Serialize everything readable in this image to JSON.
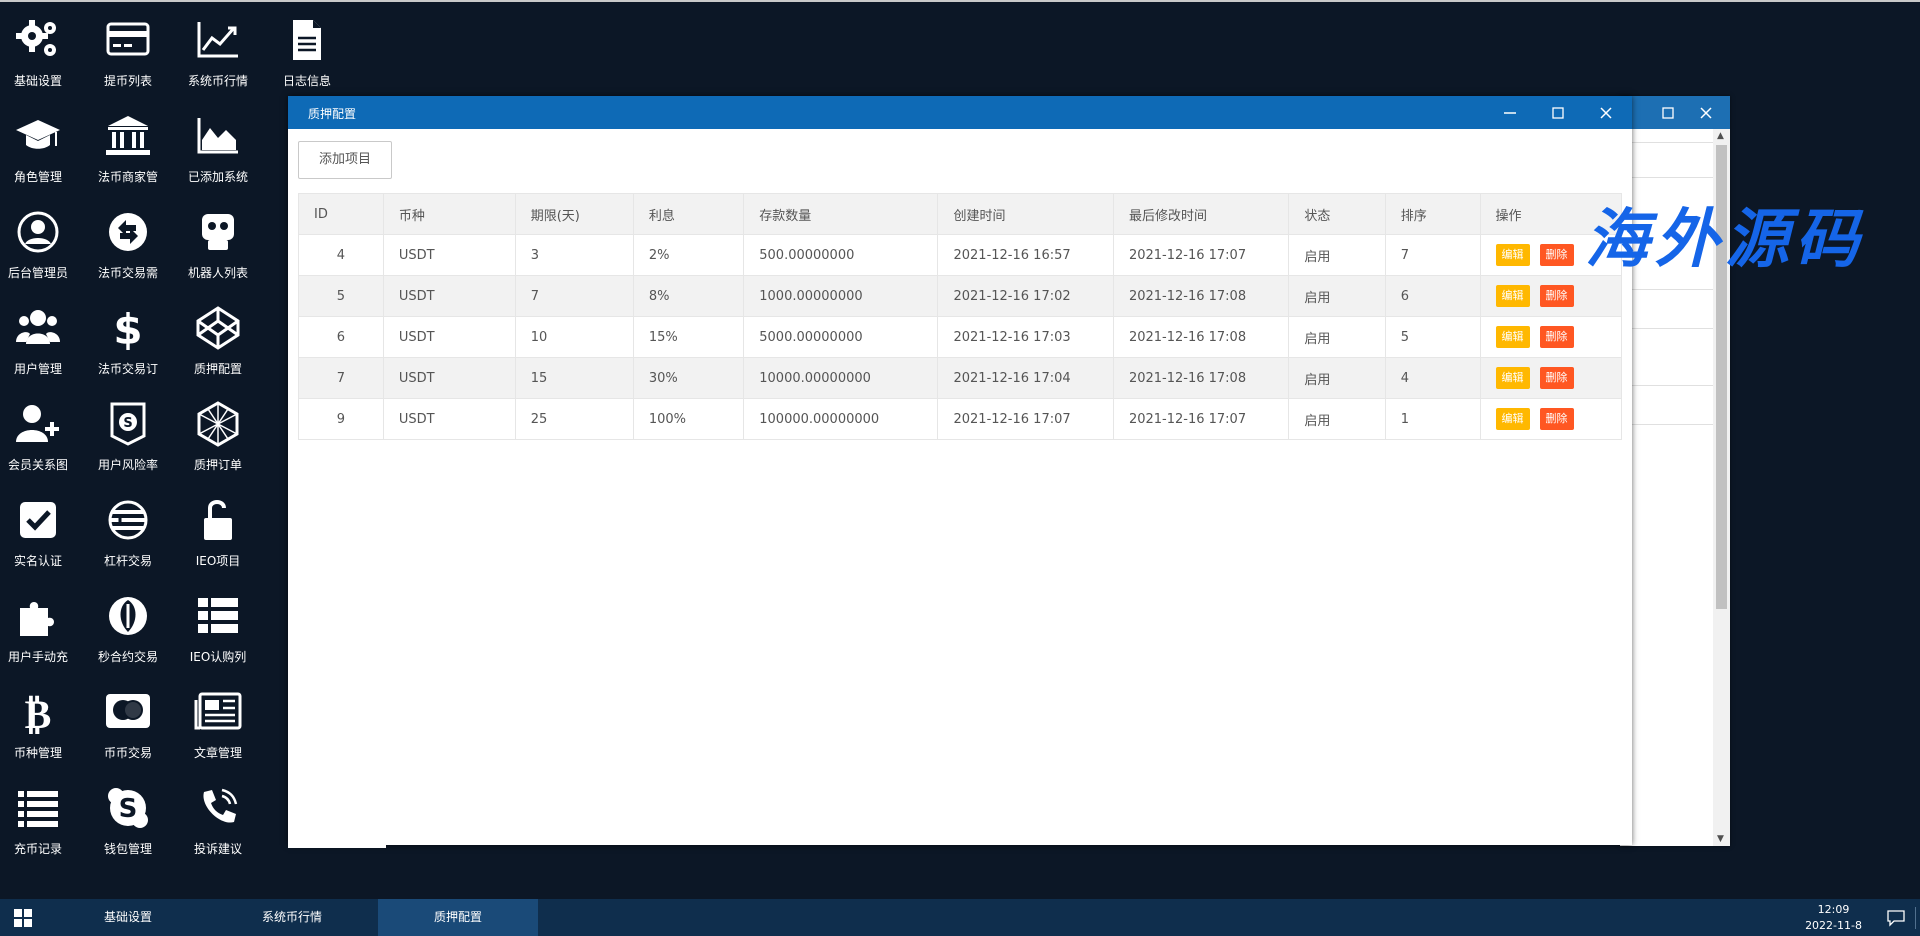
{
  "desktop": {
    "icons": [
      {
        "label": "基础设置",
        "icon": "gears-icon"
      },
      {
        "label": "提币列表",
        "icon": "credit-card-icon"
      },
      {
        "label": "系统币行情",
        "icon": "line-chart-icon"
      },
      {
        "label": "日志信息",
        "icon": "document-icon"
      },
      {
        "label": "角色管理",
        "icon": "graduation-cap-icon"
      },
      {
        "label": "法币商家管",
        "icon": "bank-icon"
      },
      {
        "label": "已添加系统",
        "icon": "area-chart-icon"
      },
      {
        "label": "后台管理员",
        "icon": "user-circle-icon"
      },
      {
        "label": "法币交易需",
        "icon": "exchange-icon"
      },
      {
        "label": "机器人列表",
        "icon": "robot-icon"
      },
      {
        "label": "用户管理",
        "icon": "users-icon"
      },
      {
        "label": "法币交易订",
        "icon": "dollar-icon"
      },
      {
        "label": "质押配置",
        "icon": "codepen-icon"
      },
      {
        "label": "会员关系图",
        "icon": "user-plus-icon"
      },
      {
        "label": "用户风险率",
        "icon": "shield-icon"
      },
      {
        "label": "质押订单",
        "icon": "hexagon-icon"
      },
      {
        "label": "实名认证",
        "icon": "check-square-icon"
      },
      {
        "label": "杠杆交易",
        "icon": "lever-icon"
      },
      {
        "label": "IEO项目",
        "icon": "unlock-icon"
      },
      {
        "label": "用户手动充",
        "icon": "puzzle-icon"
      },
      {
        "label": "秒合约交易",
        "icon": "rebel-icon"
      },
      {
        "label": "IEO认购列",
        "icon": "list-icon"
      },
      {
        "label": "币种管理",
        "icon": "bitcoin-icon"
      },
      {
        "label": "币币交易",
        "icon": "mastercard-icon"
      },
      {
        "label": "文章管理",
        "icon": "newspaper-icon"
      },
      {
        "label": "充币记录",
        "icon": "list-lines-icon"
      },
      {
        "label": "钱包管理",
        "icon": "skype-icon"
      },
      {
        "label": "投诉建议",
        "icon": "phone-icon"
      }
    ]
  },
  "window": {
    "title": "质押配置",
    "add_button": "添加项目",
    "columns": [
      "ID",
      "币种",
      "期限(天)",
      "利息",
      "存款数量",
      "创建时间",
      "最后修改时间",
      "状态",
      "排序",
      "操作"
    ],
    "rows": [
      {
        "id": "4",
        "coin": "USDT",
        "term": "3",
        "interest": "2%",
        "amount": "500.00000000",
        "created": "2021-12-16 16:57",
        "modified": "2021-12-16 17:07",
        "status": "启用",
        "sort": "7"
      },
      {
        "id": "5",
        "coin": "USDT",
        "term": "7",
        "interest": "8%",
        "amount": "1000.00000000",
        "created": "2021-12-16 17:02",
        "modified": "2021-12-16 17:08",
        "status": "启用",
        "sort": "6"
      },
      {
        "id": "6",
        "coin": "USDT",
        "term": "10",
        "interest": "15%",
        "amount": "5000.00000000",
        "created": "2021-12-16 17:03",
        "modified": "2021-12-16 17:08",
        "status": "启用",
        "sort": "5"
      },
      {
        "id": "7",
        "coin": "USDT",
        "term": "15",
        "interest": "30%",
        "amount": "10000.00000000",
        "created": "2021-12-16 17:04",
        "modified": "2021-12-16 17:08",
        "status": "启用",
        "sort": "4"
      },
      {
        "id": "9",
        "coin": "USDT",
        "term": "25",
        "interest": "100%",
        "amount": "100000.00000000",
        "created": "2021-12-16 17:07",
        "modified": "2021-12-16 17:07",
        "status": "启用",
        "sort": "1"
      }
    ],
    "edit_label": "编辑",
    "delete_label": "删除"
  },
  "watermark": "海外源码",
  "taskbar": {
    "tasks": [
      "基础设置",
      "系统币行情",
      "质押配置"
    ],
    "active_task": "质押配置",
    "time": "12:09",
    "date": "2022-11-8"
  },
  "colors": {
    "desktop_bg": "#0c1726",
    "titlebar": "#0e6ab6",
    "taskbar": "#0f2e4d",
    "edit_button": "#ffb800",
    "delete_button": "#ff5722",
    "watermark": "#1565e8"
  }
}
